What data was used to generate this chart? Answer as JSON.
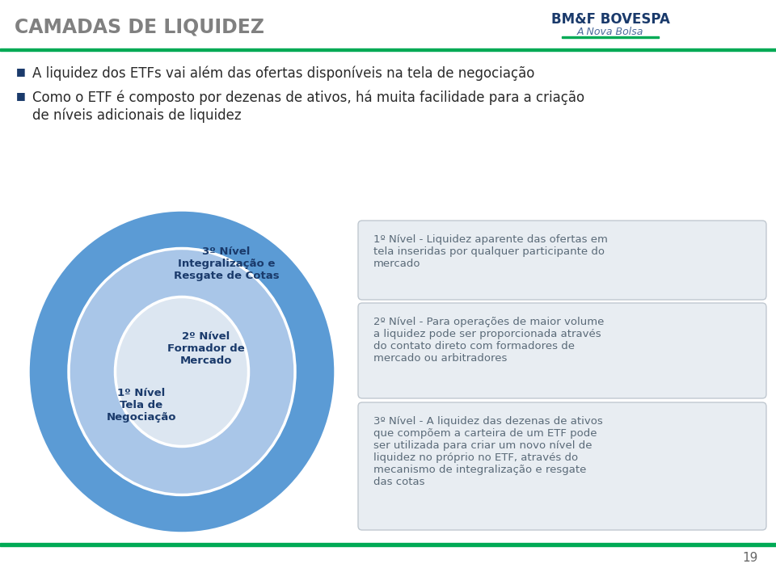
{
  "title": "CAMADAS DE LIQUIDEZ",
  "title_color": "#808080",
  "bg_color": "#ffffff",
  "green_line_color": "#00aa55",
  "bullet_color": "#1a3a6b",
  "bullet1": "A liquidez dos ETFs vai além das ofertas disponíveis na tela de negociação",
  "bullet2": "Como o ETF é composto por dezenas de ativos, há muita facilidade para a criação\nde níveis adicionais de liquidez",
  "circle_outer_color": "#5b9bd5",
  "circle_mid_color": "#a9c6e8",
  "circle_inner_color": "#dce6f1",
  "circle3_label": "3º Nível\nIntegralização e\nResgate de Cotas",
  "circle2_label": "2º Nível\nFormador de\nMercado",
  "circle1_label": "1º Nível\nTela de\nNegociação",
  "circle_text_color": "#1a3a6b",
  "box_bg_color": "#e8edf2",
  "box_border_color": "#c0c8d0",
  "box_text_color": "#5a6a78",
  "box1_text": "1º Nível - Liquidez aparente das ofertas em\ntela inseridas por qualquer participante do\nmercado",
  "box2_text": "2º Nível - Para operações de maior volume\na liquidez pode ser proporcionada através\ndo contato direto com formadores de\nmercado ou arbitradores",
  "box3_text": "3º Nível - A liquidez das dezenas de ativos\nque compõem a carteira de um ETF pode\nser utilizada para criar um novo nível de\nliquidez no próprio no ETF, através do\nmecanismo de integralização e resgate\ndas cotas",
  "page_number": "19",
  "logo_main": "BM&F BOVESPA",
  "logo_sub": "A Nova Bolsa"
}
